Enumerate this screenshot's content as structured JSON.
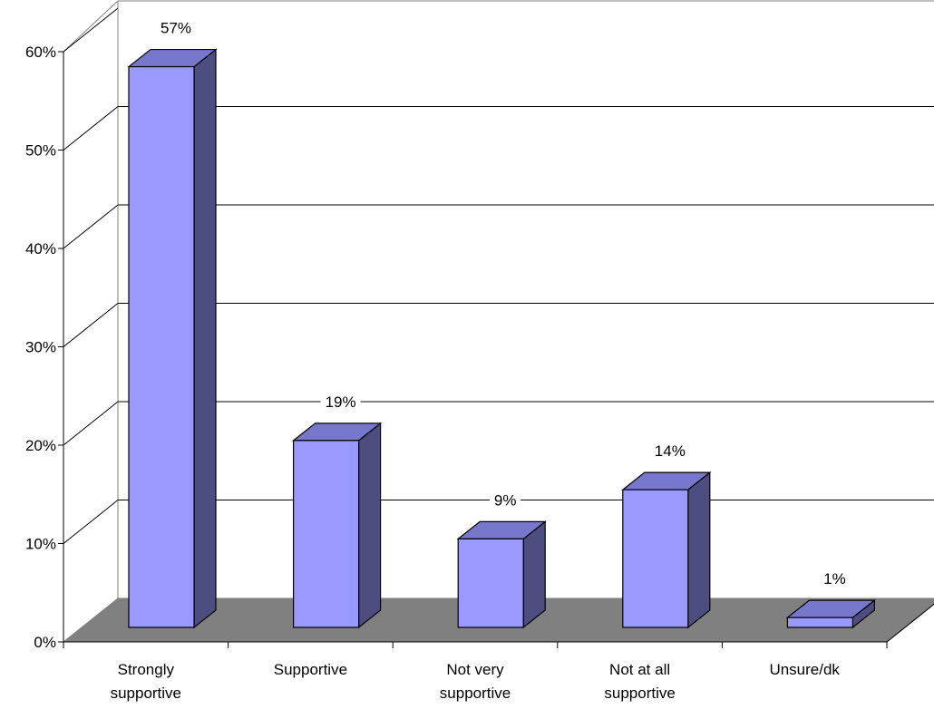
{
  "chart_data": {
    "type": "bar",
    "style": "3d-column",
    "categories": [
      [
        "Strongly",
        "supportive"
      ],
      [
        "Supportive"
      ],
      [
        "Not very",
        "supportive"
      ],
      [
        "Not at all",
        "supportive"
      ],
      [
        "Unsure/dk"
      ]
    ],
    "values": [
      57,
      19,
      9,
      14,
      1
    ],
    "data_labels": [
      "57%",
      "19%",
      "9%",
      "14%",
      "1%"
    ],
    "y_ticks": [
      "0%",
      "10%",
      "20%",
      "30%",
      "40%",
      "50%",
      "60%"
    ],
    "ylim": [
      0,
      60
    ],
    "grid": true,
    "colors": {
      "bar_front": "#9999ff",
      "bar_side": "#4d4d80",
      "bar_top": "#7777cc",
      "floor": "#808080",
      "grid": "#000000"
    }
  }
}
